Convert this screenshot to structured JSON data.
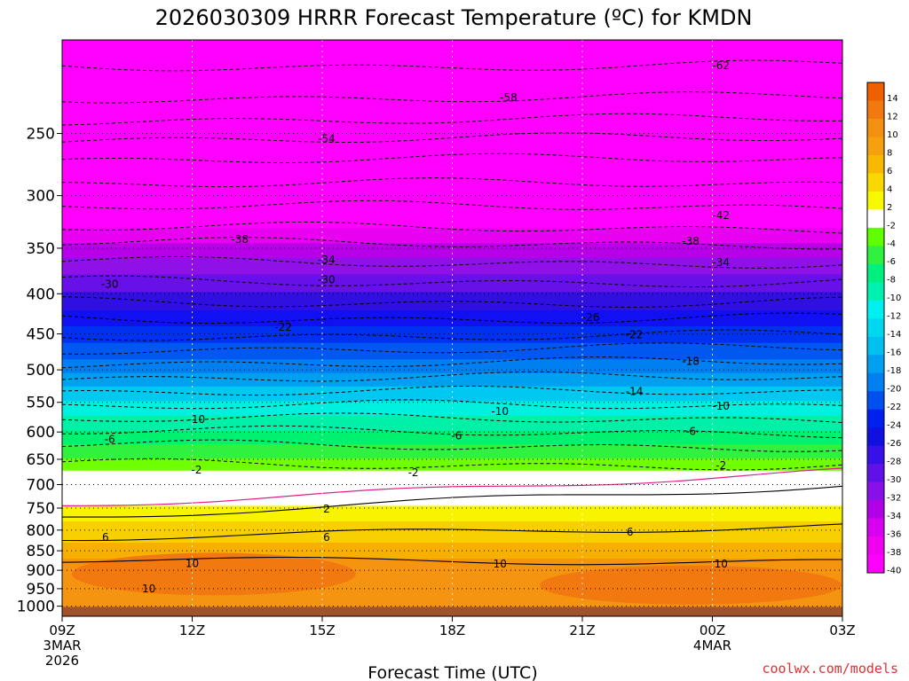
{
  "chart_data": {
    "type": "heatmap",
    "title": "2026030309 HRRR Forecast Temperature (ºC) for KMDN",
    "xlabel": "Forecast Time (UTC)",
    "ylabel": "",
    "credit": "coolwx.com/models",
    "y_range_hpa": [
      1030,
      190
    ],
    "y_ticks": [
      "250",
      "300",
      "350",
      "400",
      "450",
      "500",
      "550",
      "600",
      "650",
      "700",
      "750",
      "800",
      "850",
      "900",
      "950",
      "1000"
    ],
    "x_ticks": [
      {
        "label": "09Z",
        "hour": 0,
        "sub": [
          "3MAR",
          "2026"
        ]
      },
      {
        "label": "12Z",
        "hour": 3,
        "sub": []
      },
      {
        "label": "15Z",
        "hour": 6,
        "sub": []
      },
      {
        "label": "18Z",
        "hour": 9,
        "sub": []
      },
      {
        "label": "21Z",
        "hour": 12,
        "sub": []
      },
      {
        "label": "00Z",
        "hour": 15,
        "sub": [
          "4MAR"
        ]
      },
      {
        "label": "03Z",
        "hour": 18,
        "sub": []
      }
    ],
    "x_range_hours": [
      0,
      18
    ],
    "colorbar_labels": [
      "14",
      "12",
      "10",
      "8",
      "6",
      "4",
      "2",
      "-2",
      "-4",
      "-6",
      "-8",
      "-10",
      "-12",
      "-14",
      "-16",
      "-18",
      "-20",
      "-22",
      "-24",
      "-26",
      "-28",
      "-30",
      "-32",
      "-34",
      "-36",
      "-38",
      "-40"
    ],
    "colorbar_colors": [
      "#f06000",
      "#f27810",
      "#f49010",
      "#f6a010",
      "#f8b800",
      "#f8d800",
      "#f8f800",
      "#ffffff",
      "#60ff00",
      "#30f040",
      "#00f080",
      "#00f0b0",
      "#00f0f0",
      "#00d8f0",
      "#00c0f0",
      "#00a0f0",
      "#0080f0",
      "#0050f0",
      "#0020f0",
      "#1010e0",
      "#3810e8",
      "#6010e8",
      "#8810e8",
      "#b000e8",
      "#d800f0",
      "#f000f0",
      "#ff00ff"
    ],
    "ground_color": "#a0522d",
    "contour_labels": [
      {
        "text": "-62",
        "hour": 15.2,
        "p": 205
      },
      {
        "text": "-58",
        "hour": 10.3,
        "p": 225
      },
      {
        "text": "-54",
        "hour": 6.1,
        "p": 254
      },
      {
        "text": "-42",
        "hour": 15.2,
        "p": 318
      },
      {
        "text": "-38",
        "hour": 4.1,
        "p": 341
      },
      {
        "text": "-38",
        "hour": 14.5,
        "p": 343
      },
      {
        "text": "-34",
        "hour": 6.1,
        "p": 362
      },
      {
        "text": "-34",
        "hour": 15.2,
        "p": 365
      },
      {
        "text": "-30",
        "hour": 1.1,
        "p": 389
      },
      {
        "text": "-30",
        "hour": 6.1,
        "p": 384
      },
      {
        "text": "-26",
        "hour": 12.2,
        "p": 429
      },
      {
        "text": "-22",
        "hour": 5.1,
        "p": 441
      },
      {
        "text": "-22",
        "hour": 13.2,
        "p": 451
      },
      {
        "text": "-18",
        "hour": 14.5,
        "p": 488
      },
      {
        "text": "-14",
        "hour": 13.2,
        "p": 533
      },
      {
        "text": "-10",
        "hour": 3.1,
        "p": 578
      },
      {
        "text": "-10",
        "hour": 10.1,
        "p": 565
      },
      {
        "text": "-10",
        "hour": 15.2,
        "p": 556
      },
      {
        "text": "-6",
        "hour": 1.1,
        "p": 613
      },
      {
        "text": "-6",
        "hour": 9.1,
        "p": 607
      },
      {
        "text": "-6",
        "hour": 14.5,
        "p": 599
      },
      {
        "text": "-2",
        "hour": 3.1,
        "p": 671
      },
      {
        "text": "-2",
        "hour": 8.1,
        "p": 676
      },
      {
        "text": "-2",
        "hour": 15.2,
        "p": 662
      },
      {
        "text": "2",
        "hour": 6.1,
        "p": 752
      },
      {
        "text": "6",
        "hour": 1.0,
        "p": 817
      },
      {
        "text": "6",
        "hour": 6.1,
        "p": 817
      },
      {
        "text": "6",
        "hour": 13.1,
        "p": 805
      },
      {
        "text": "10",
        "hour": 3.0,
        "p": 882
      },
      {
        "text": "10",
        "hour": 2.0,
        "p": 950
      },
      {
        "text": "10",
        "hour": 10.1,
        "p": 883
      },
      {
        "text": "10",
        "hour": 15.2,
        "p": 883
      }
    ]
  }
}
